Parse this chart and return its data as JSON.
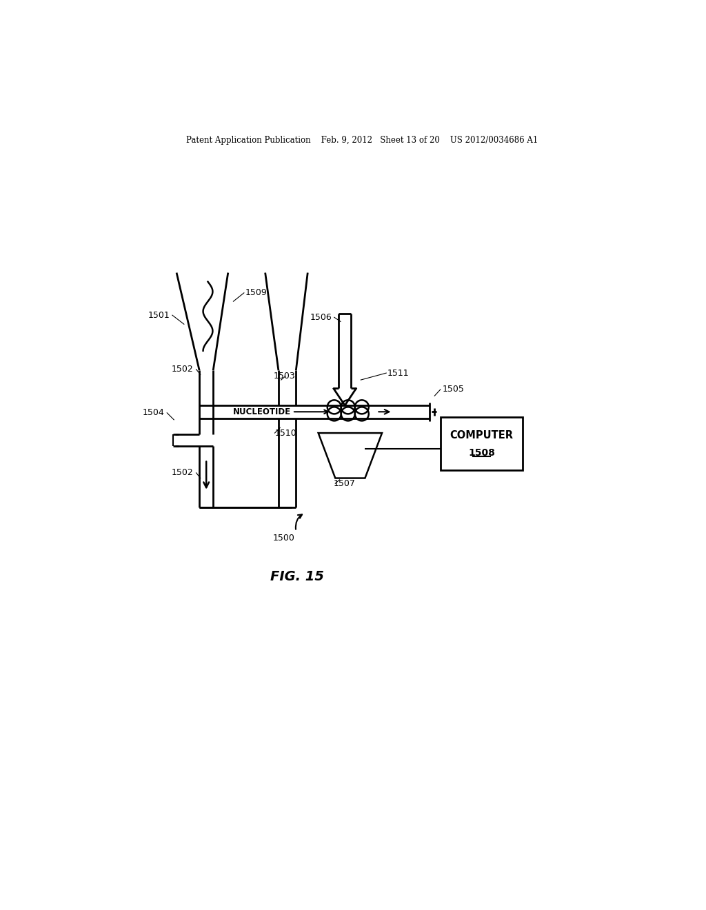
{
  "bg_color": "#ffffff",
  "header": "Patent Application Publication    Feb. 9, 2012   Sheet 13 of 20    US 2012/0034686 A1",
  "fig_label": "FIG. 15",
  "lw": 1.8
}
